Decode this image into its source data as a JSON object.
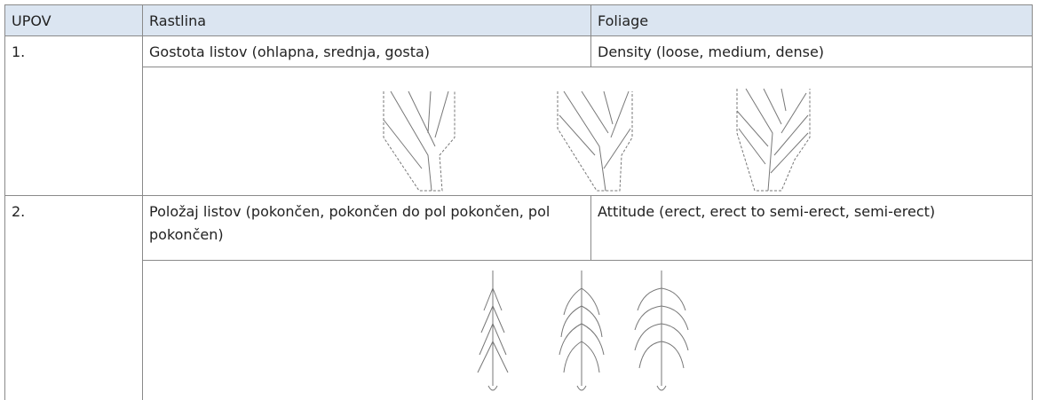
{
  "table": {
    "header": [
      "UPOV",
      "Rastlina",
      "Foliage"
    ],
    "rows": [
      [
        "1.",
        "Gostota listov (ohlapna, srednja, gosta)",
        "Density (loose, medium, dense)"
      ],
      [
        "2.",
        "Položaj listov (pokončen, pokončen do pol pokončen, pol pokončen)",
        "Attitude (erect, erect to semi-erect, semi-erect)"
      ]
    ]
  }
}
